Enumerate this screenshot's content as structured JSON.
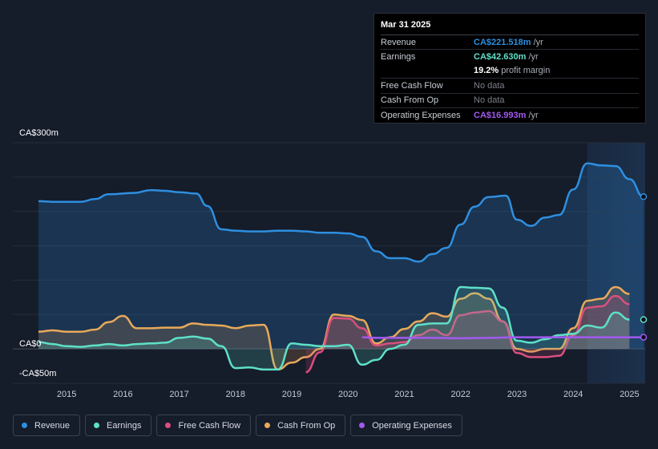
{
  "tooltip": {
    "date": "Mar 31 2025",
    "rows": [
      {
        "label": "Revenue",
        "value": "CA$221.518m",
        "unit": "/yr",
        "color": "#2e8fe0"
      },
      {
        "label": "Earnings",
        "value": "CA$42.630m",
        "unit": "/yr",
        "color": "#5fe0c8"
      },
      {
        "label": "",
        "value": "19.2%",
        "unit": "profit margin",
        "color": "#ffffff"
      },
      {
        "label": "Free Cash Flow",
        "value": "No data",
        "unit": "",
        "color": "#7c818a"
      },
      {
        "label": "Cash From Op",
        "value": "No data",
        "unit": "",
        "color": "#7c818a"
      },
      {
        "label": "Operating Expenses",
        "value": "CA$16.993m",
        "unit": "/yr",
        "color": "#a259f0"
      }
    ]
  },
  "legend": [
    {
      "label": "Revenue",
      "color": "#2e8fe0"
    },
    {
      "label": "Earnings",
      "color": "#5fe0c8"
    },
    {
      "label": "Free Cash Flow",
      "color": "#d94f7e"
    },
    {
      "label": "Cash From Op",
      "color": "#e8a95a"
    },
    {
      "label": "Operating Expenses",
      "color": "#a259f0"
    }
  ],
  "chart_data": {
    "type": "line",
    "ylim": [
      -50,
      300
    ],
    "y_ticks": [
      {
        "value": 300,
        "label": "CA$300m"
      },
      {
        "value": 0,
        "label": "CA$0"
      },
      {
        "value": -50,
        "label": "-CA$50m"
      }
    ],
    "x_ticks": [
      {
        "value": 2015,
        "label": "2015"
      },
      {
        "value": 2016,
        "label": "2016"
      },
      {
        "value": 2017,
        "label": "2017"
      },
      {
        "value": 2018,
        "label": "2018"
      },
      {
        "value": 2019,
        "label": "2019"
      },
      {
        "value": 2020,
        "label": "2020"
      },
      {
        "value": 2021,
        "label": "2021"
      },
      {
        "value": 2022,
        "label": "2022"
      },
      {
        "value": 2023,
        "label": "2023"
      },
      {
        "value": 2024,
        "label": "2024"
      },
      {
        "value": 2025,
        "label": "2025"
      }
    ],
    "xlim": [
      2014.5,
      2025.25
    ],
    "highlight_from": 2024.25,
    "series": [
      {
        "name": "Revenue",
        "color": "#2e8fe0",
        "fill": true,
        "points": [
          [
            2014.5,
            215
          ],
          [
            2014.75,
            214
          ],
          [
            2015.25,
            214
          ],
          [
            2015.5,
            218
          ],
          [
            2015.75,
            225
          ],
          [
            2016.2,
            227
          ],
          [
            2016.5,
            231
          ],
          [
            2016.75,
            230
          ],
          [
            2017.0,
            228
          ],
          [
            2017.3,
            226
          ],
          [
            2017.5,
            208
          ],
          [
            2017.75,
            174
          ],
          [
            2018.0,
            172
          ],
          [
            2018.25,
            171
          ],
          [
            2018.5,
            171
          ],
          [
            2018.75,
            172
          ],
          [
            2019.0,
            172
          ],
          [
            2019.25,
            171
          ],
          [
            2019.5,
            169
          ],
          [
            2019.75,
            169
          ],
          [
            2020.0,
            168
          ],
          [
            2020.25,
            163
          ],
          [
            2020.5,
            142
          ],
          [
            2020.75,
            132
          ],
          [
            2021.0,
            132
          ],
          [
            2021.25,
            127
          ],
          [
            2021.5,
            138
          ],
          [
            2021.75,
            147
          ],
          [
            2022.0,
            181
          ],
          [
            2022.25,
            207
          ],
          [
            2022.5,
            221
          ],
          [
            2022.8,
            223
          ],
          [
            2023.0,
            188
          ],
          [
            2023.25,
            179
          ],
          [
            2023.5,
            191
          ],
          [
            2023.75,
            195
          ],
          [
            2024.0,
            232
          ],
          [
            2024.25,
            270
          ],
          [
            2024.5,
            267
          ],
          [
            2024.75,
            266
          ],
          [
            2025.0,
            247
          ],
          [
            2025.25,
            221.5
          ]
        ]
      },
      {
        "name": "Earnings",
        "color": "#5fe0c8",
        "fill": true,
        "points": [
          [
            2014.5,
            10
          ],
          [
            2014.75,
            7
          ],
          [
            2015.0,
            4
          ],
          [
            2015.25,
            3
          ],
          [
            2015.5,
            5
          ],
          [
            2015.75,
            7
          ],
          [
            2016.0,
            5
          ],
          [
            2016.25,
            7
          ],
          [
            2016.5,
            8
          ],
          [
            2016.75,
            9
          ],
          [
            2017.0,
            16
          ],
          [
            2017.25,
            18
          ],
          [
            2017.5,
            15
          ],
          [
            2017.75,
            4
          ],
          [
            2018.0,
            -28
          ],
          [
            2018.25,
            -27
          ],
          [
            2018.5,
            -30
          ],
          [
            2018.75,
            -30
          ],
          [
            2019.0,
            8
          ],
          [
            2019.25,
            6
          ],
          [
            2019.5,
            4
          ],
          [
            2019.75,
            4
          ],
          [
            2020.0,
            6
          ],
          [
            2020.25,
            -23
          ],
          [
            2020.5,
            -16
          ],
          [
            2020.75,
            0
          ],
          [
            2021.0,
            6
          ],
          [
            2021.25,
            35
          ],
          [
            2021.5,
            37
          ],
          [
            2021.75,
            37
          ],
          [
            2022.0,
            90
          ],
          [
            2022.25,
            89
          ],
          [
            2022.5,
            88
          ],
          [
            2022.75,
            60
          ],
          [
            2023.0,
            12
          ],
          [
            2023.25,
            9
          ],
          [
            2023.5,
            14
          ],
          [
            2023.75,
            20
          ],
          [
            2024.0,
            22
          ],
          [
            2024.25,
            34
          ],
          [
            2024.5,
            31
          ],
          [
            2024.75,
            53
          ],
          [
            2025.0,
            42.6
          ]
        ]
      },
      {
        "name": "Free Cash Flow",
        "color": "#d94f7e",
        "fill": true,
        "points": [
          [
            2019.25,
            -34
          ],
          [
            2019.5,
            -5
          ],
          [
            2019.75,
            45
          ],
          [
            2020.0,
            44
          ],
          [
            2020.25,
            30
          ],
          [
            2020.5,
            5
          ],
          [
            2020.75,
            8
          ],
          [
            2021.0,
            10
          ],
          [
            2021.25,
            20
          ],
          [
            2021.5,
            28
          ],
          [
            2021.75,
            20
          ],
          [
            2022.0,
            49
          ],
          [
            2022.25,
            53
          ],
          [
            2022.5,
            55
          ],
          [
            2022.75,
            40
          ],
          [
            2023.0,
            -6
          ],
          [
            2023.25,
            -12
          ],
          [
            2023.5,
            -12
          ],
          [
            2023.75,
            -10
          ],
          [
            2024.0,
            20
          ],
          [
            2024.25,
            60
          ],
          [
            2024.5,
            62
          ],
          [
            2024.75,
            77
          ],
          [
            2025.0,
            65
          ]
        ]
      },
      {
        "name": "Cash From Op",
        "color": "#e8a95a",
        "fill": true,
        "points": [
          [
            2014.5,
            25
          ],
          [
            2014.75,
            27
          ],
          [
            2015.0,
            25
          ],
          [
            2015.25,
            25
          ],
          [
            2015.5,
            28
          ],
          [
            2015.75,
            39
          ],
          [
            2016.0,
            48
          ],
          [
            2016.25,
            30
          ],
          [
            2016.5,
            30
          ],
          [
            2016.75,
            31
          ],
          [
            2017.0,
            31
          ],
          [
            2017.25,
            37
          ],
          [
            2017.5,
            35
          ],
          [
            2017.75,
            34
          ],
          [
            2018.0,
            30
          ],
          [
            2018.25,
            34
          ],
          [
            2018.5,
            35
          ],
          [
            2018.75,
            -30
          ],
          [
            2019.0,
            -20
          ],
          [
            2019.25,
            -12
          ],
          [
            2019.5,
            0
          ],
          [
            2019.75,
            50
          ],
          [
            2020.0,
            48
          ],
          [
            2020.25,
            42
          ],
          [
            2020.5,
            8
          ],
          [
            2020.75,
            17
          ],
          [
            2021.0,
            29
          ],
          [
            2021.25,
            40
          ],
          [
            2021.5,
            52
          ],
          [
            2021.75,
            47
          ],
          [
            2022.0,
            73
          ],
          [
            2022.25,
            81
          ],
          [
            2022.5,
            73
          ],
          [
            2022.75,
            40
          ],
          [
            2023.0,
            0
          ],
          [
            2023.25,
            -4
          ],
          [
            2023.5,
            0
          ],
          [
            2023.75,
            0
          ],
          [
            2024.0,
            30
          ],
          [
            2024.25,
            70
          ],
          [
            2024.5,
            73
          ],
          [
            2024.75,
            90
          ],
          [
            2025.0,
            80
          ]
        ]
      },
      {
        "name": "Operating Expenses",
        "color": "#a259f0",
        "fill": false,
        "points": [
          [
            2020.25,
            17
          ],
          [
            2020.5,
            16
          ],
          [
            2021.0,
            16
          ],
          [
            2021.5,
            16
          ],
          [
            2022.0,
            15.5
          ],
          [
            2022.5,
            16
          ],
          [
            2023.0,
            17
          ],
          [
            2023.5,
            17
          ],
          [
            2024.0,
            17
          ],
          [
            2024.5,
            17
          ],
          [
            2025.25,
            17
          ]
        ]
      }
    ]
  }
}
